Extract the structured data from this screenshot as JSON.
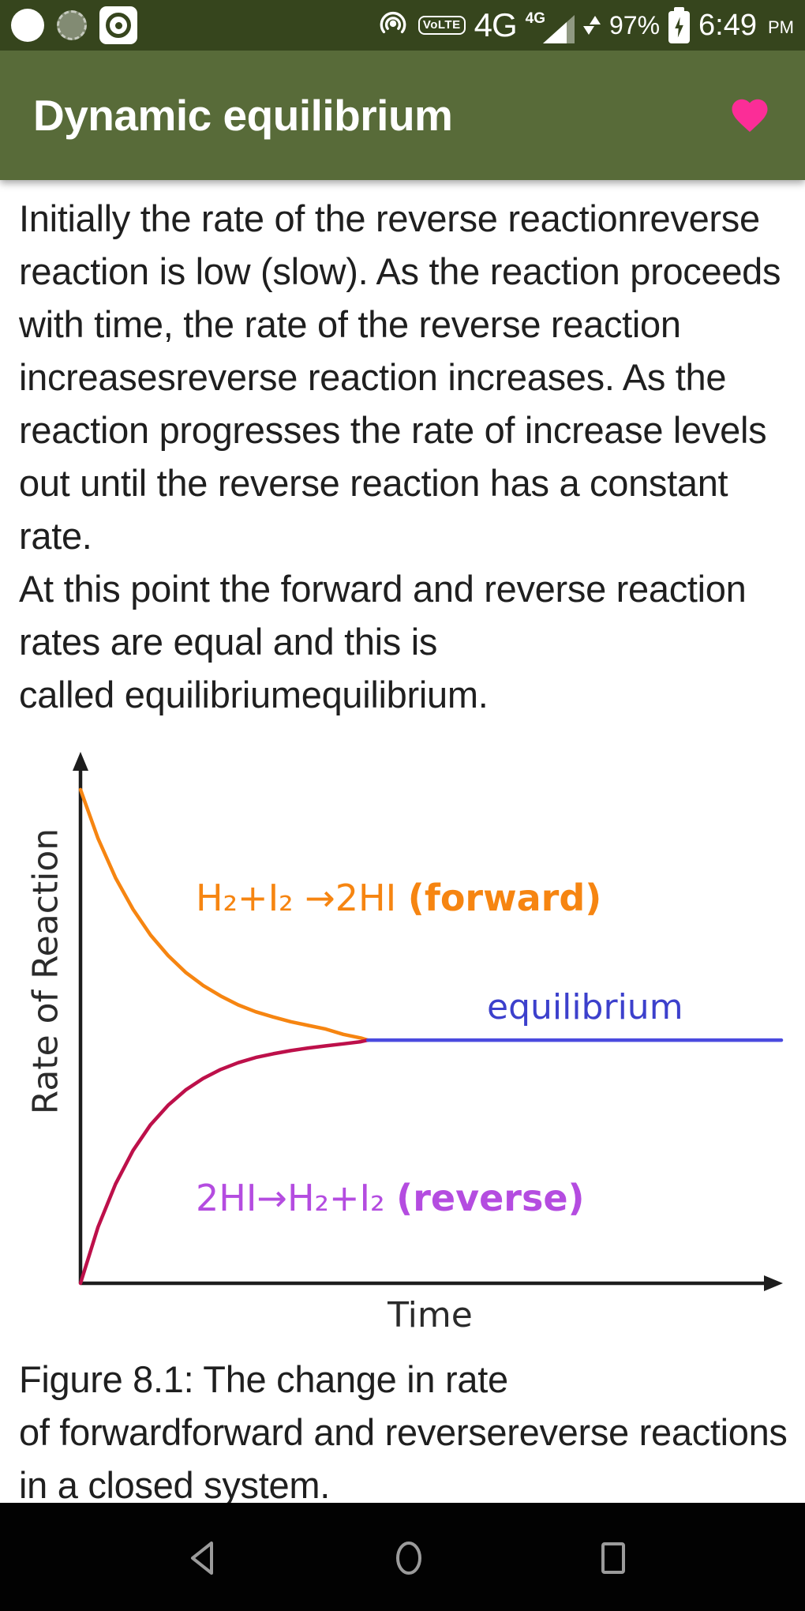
{
  "status_bar": {
    "network_badge": "VoLTE",
    "network": "4G",
    "signal_label": "4G",
    "battery": "97%",
    "time": "6:49",
    "meridiem": "PM"
  },
  "header": {
    "title": "Dynamic equilibrium"
  },
  "article": {
    "lines": [
      "Initially the rate of the reverse reactionreverse",
      "reaction is low (slow). As the reaction proceeds",
      "with time, the rate of the reverse reaction",
      "increasesreverse reaction increases. As the",
      "reaction progresses the rate of increase levels",
      "out until the reverse reaction has a constant",
      "rate.",
      "At this point the forward and reverse reaction",
      "rates are equal and this is",
      "called equilibriumequilibrium."
    ]
  },
  "figure": {
    "forward_formula": "H₂+I₂ →2HI",
    "forward_tag": "(forward)",
    "equilibrium_label": "equilibrium",
    "reverse_formula": "2HI→H₂+I₂",
    "reverse_tag": "(reverse)",
    "ylabel": "Rate of Reaction",
    "xlabel": "Time",
    "caption_lines": [
      "Figure 8.1: The change in rate",
      "of forwardforward and reversereverse reactions",
      "in a closed system."
    ]
  },
  "chart_data": {
    "type": "line",
    "title": "",
    "xlabel": "Time",
    "ylabel": "Rate of Reaction",
    "xlim": [
      0,
      10
    ],
    "ylim": [
      0,
      1
    ],
    "grid": false,
    "axis_tick_labels": "none (qualitative axes with arrowheads)",
    "legend_position": "labels beside curves",
    "equilibrium_point": {
      "time": 4.1,
      "rate": 0.463
    },
    "series": [
      {
        "key": "forward",
        "name": "H₂+I₂ →2HI (forward)",
        "color": "#f68511",
        "x": [
          0,
          0.25,
          0.5,
          0.75,
          1,
          1.25,
          1.5,
          1.75,
          2,
          2.25,
          2.5,
          2.75,
          3,
          3.25,
          3.5,
          3.75,
          4,
          4.1
        ],
        "values": [
          0.94,
          0.847,
          0.772,
          0.712,
          0.663,
          0.624,
          0.592,
          0.567,
          0.547,
          0.53,
          0.517,
          0.507,
          0.498,
          0.491,
          0.484,
          0.474,
          0.467,
          0.463
        ]
      },
      {
        "key": "reverse",
        "name": "2HI→H₂+I₂ (reverse)",
        "color": "#bd104a",
        "x": [
          0,
          0.25,
          0.5,
          0.75,
          1,
          1.25,
          1.5,
          1.75,
          2,
          2.25,
          2.5,
          2.75,
          3,
          3.25,
          3.5,
          3.75,
          4,
          4.1
        ],
        "values": [
          0,
          0.107,
          0.189,
          0.253,
          0.302,
          0.339,
          0.368,
          0.39,
          0.407,
          0.42,
          0.43,
          0.437,
          0.443,
          0.448,
          0.452,
          0.456,
          0.46,
          0.463
        ]
      },
      {
        "key": "equilibrium",
        "name": "equilibrium",
        "color": "#4a4adf",
        "x": [
          4.1,
          10
        ],
        "values": [
          0.463,
          0.463
        ]
      }
    ]
  },
  "nav_bar": {
    "icons": [
      "back",
      "home",
      "recents"
    ]
  },
  "colors": {
    "status_bar_bg": "#36451d",
    "header_bg": "#586b39",
    "heart_pink": "#fb2d97",
    "forward_orange": "#f68511",
    "reverse_crimson": "#bd104a",
    "equilibrium_blue_line": "#4a4adf",
    "equilibrium_blue_text": "#3c40cc",
    "reverse_label_purple": "#b44ce0",
    "nav_icon_gray": "#9b9b9b",
    "body_text": "#1f1f1f"
  }
}
